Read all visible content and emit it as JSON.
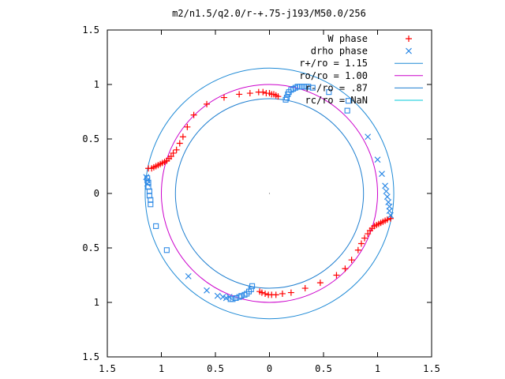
{
  "chart_data": {
    "type": "scatter",
    "title": "m2/n1.5/q2.0/r-+.75-j193/M50.0/256",
    "xlabel": "",
    "ylabel": "",
    "xlim": [
      -1.5,
      1.5
    ],
    "ylim": [
      -1.5,
      1.5
    ],
    "x_ticks": [
      -1.5,
      -1,
      -0.5,
      0,
      0.5,
      1,
      1.5
    ],
    "x_tick_labels": [
      "1.5",
      "1",
      "0.5",
      "0",
      "0.5",
      "1",
      "1.5"
    ],
    "y_ticks": [
      1.5,
      1,
      0.5,
      0,
      -0.5,
      -1,
      -1.5
    ],
    "y_tick_labels": [
      "1.5",
      "1",
      "0.5",
      "0",
      "0.5",
      "1",
      "1.5"
    ],
    "grid": false,
    "legend_position": "top-right",
    "colors": {
      "w_phase": "#ff0000",
      "drho_phase": "#2e8ae6",
      "circle_outer": "#1f8ad6",
      "circle_middle": "#cc00cc",
      "circle_inner": "#1f7fd0",
      "circle_rc": "#00c8d8",
      "axes": "#000000"
    },
    "series": [
      {
        "name": "W phase",
        "marker": "plus",
        "color_key": "w_phase",
        "points": [
          [
            -1.12,
            0.23
          ],
          [
            -1.09,
            0.23
          ],
          [
            -1.07,
            0.24
          ],
          [
            -1.05,
            0.25
          ],
          [
            -1.03,
            0.26
          ],
          [
            -1.01,
            0.27
          ],
          [
            -0.99,
            0.28
          ],
          [
            -0.97,
            0.29
          ],
          [
            -0.95,
            0.3
          ],
          [
            -0.93,
            0.32
          ],
          [
            -0.91,
            0.34
          ],
          [
            -0.89,
            0.37
          ],
          [
            -0.86,
            0.4
          ],
          [
            -0.83,
            0.46
          ],
          [
            -0.8,
            0.52
          ],
          [
            -0.76,
            0.61
          ],
          [
            -0.7,
            0.72
          ],
          [
            -0.58,
            0.82
          ],
          [
            -0.42,
            0.88
          ],
          [
            -0.28,
            0.91
          ],
          [
            -0.18,
            0.92
          ],
          [
            -0.1,
            0.93
          ],
          [
            -0.06,
            0.93
          ],
          [
            -0.03,
            0.92
          ],
          [
            0.0,
            0.92
          ],
          [
            0.02,
            0.91
          ],
          [
            0.04,
            0.91
          ],
          [
            0.06,
            0.9
          ],
          [
            0.08,
            0.89
          ],
          [
            1.12,
            -0.23
          ],
          [
            1.09,
            -0.24
          ],
          [
            1.07,
            -0.25
          ],
          [
            1.05,
            -0.26
          ],
          [
            1.03,
            -0.27
          ],
          [
            1.01,
            -0.28
          ],
          [
            0.99,
            -0.29
          ],
          [
            0.97,
            -0.3
          ],
          [
            0.95,
            -0.32
          ],
          [
            0.93,
            -0.34
          ],
          [
            0.91,
            -0.37
          ],
          [
            0.88,
            -0.41
          ],
          [
            0.85,
            -0.46
          ],
          [
            0.82,
            -0.52
          ],
          [
            0.76,
            -0.61
          ],
          [
            0.7,
            -0.69
          ],
          [
            0.62,
            -0.75
          ],
          [
            0.47,
            -0.82
          ],
          [
            0.33,
            -0.87
          ],
          [
            0.2,
            -0.91
          ],
          [
            0.12,
            -0.92
          ],
          [
            0.06,
            -0.93
          ],
          [
            0.02,
            -0.93
          ],
          [
            -0.01,
            -0.93
          ],
          [
            -0.04,
            -0.92
          ],
          [
            -0.07,
            -0.91
          ],
          [
            -0.09,
            -0.9
          ]
        ]
      },
      {
        "name": "drho phase",
        "marker": "cross",
        "color_key": "drho_phase",
        "points": [
          [
            0.91,
            0.52
          ],
          [
            1.0,
            0.31
          ],
          [
            1.04,
            0.18
          ],
          [
            1.07,
            0.07
          ],
          [
            1.08,
            0.02
          ],
          [
            1.09,
            -0.03
          ],
          [
            1.1,
            -0.08
          ],
          [
            1.11,
            -0.12
          ],
          [
            1.11,
            -0.16
          ],
          [
            1.12,
            -0.2
          ],
          [
            -0.75,
            -0.76
          ],
          [
            -0.58,
            -0.89
          ],
          [
            -0.48,
            -0.94
          ],
          [
            -0.43,
            -0.95
          ],
          [
            -0.4,
            -0.96
          ],
          [
            -0.37,
            -0.95
          ],
          [
            -1.14,
            0.15
          ],
          [
            -1.13,
            0.12
          ],
          [
            -1.13,
            0.09
          ]
        ]
      },
      {
        "name": "drho phase",
        "marker": "square",
        "color_key": "drho_phase",
        "points": [
          [
            0.15,
            0.86
          ],
          [
            0.16,
            0.88
          ],
          [
            0.17,
            0.91
          ],
          [
            0.18,
            0.93
          ],
          [
            0.2,
            0.95
          ],
          [
            0.22,
            0.96
          ],
          [
            0.24,
            0.97
          ],
          [
            0.26,
            0.98
          ],
          [
            0.28,
            0.98
          ],
          [
            0.3,
            0.98
          ],
          [
            0.32,
            0.98
          ],
          [
            0.34,
            0.98
          ],
          [
            0.36,
            0.98
          ],
          [
            0.4,
            0.97
          ],
          [
            0.55,
            0.93
          ],
          [
            0.73,
            0.85
          ],
          [
            0.72,
            0.76
          ],
          [
            -1.13,
            0.14
          ],
          [
            -1.12,
            0.1
          ],
          [
            -1.12,
            0.06
          ],
          [
            -1.11,
            0.02
          ],
          [
            -1.11,
            -0.02
          ],
          [
            -1.1,
            -0.06
          ],
          [
            -1.1,
            -0.1
          ],
          [
            -1.05,
            -0.3
          ],
          [
            -0.95,
            -0.52
          ],
          [
            -0.16,
            -0.85
          ],
          [
            -0.17,
            -0.88
          ],
          [
            -0.19,
            -0.9
          ],
          [
            -0.21,
            -0.92
          ],
          [
            -0.23,
            -0.93
          ],
          [
            -0.26,
            -0.94
          ],
          [
            -0.28,
            -0.95
          ],
          [
            -0.31,
            -0.96
          ],
          [
            -0.34,
            -0.97
          ],
          [
            -0.36,
            -0.97
          ]
        ]
      },
      {
        "name": "r+/ro = 1.15",
        "marker": "circle",
        "radius": 1.15,
        "color_key": "circle_outer"
      },
      {
        "name": "ro/ro = 1.00",
        "marker": "circle",
        "radius": 1.0,
        "color_key": "circle_middle"
      },
      {
        "name": "r-/ro = .87",
        "marker": "circle",
        "radius": 0.87,
        "color_key": "circle_inner"
      },
      {
        "name": "rc/ro = NaN",
        "marker": "circle",
        "radius": null,
        "color_key": "circle_rc"
      }
    ]
  }
}
